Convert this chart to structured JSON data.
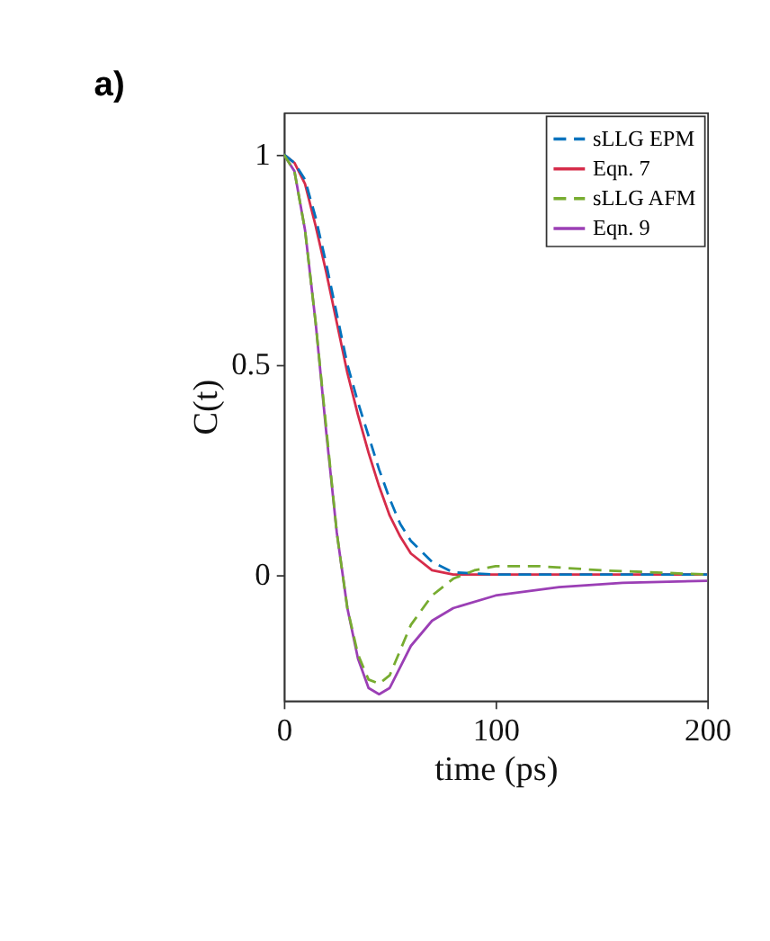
{
  "chart_data": {
    "type": "line",
    "title": "a)",
    "xlabel": "time (ps)",
    "ylabel": "C(t)",
    "xlim": [
      0,
      200
    ],
    "ylim": [
      -0.3,
      1.1
    ],
    "xticks": [
      0,
      100,
      200
    ],
    "yticks": [
      {
        "value": 0,
        "label": "0"
      },
      {
        "value": 0.5,
        "label": "0.5"
      },
      {
        "value": 1,
        "label": "1"
      }
    ],
    "grid": false,
    "legend": "top right",
    "series": [
      {
        "name": "sLLG EPM",
        "color": "#0072bd",
        "line_style": "dashed",
        "x": [
          0,
          5,
          10,
          15,
          20,
          25,
          30,
          35,
          40,
          45,
          50,
          55,
          60,
          70,
          80,
          100,
          150,
          200
        ],
        "values": [
          1,
          0.98,
          0.94,
          0.85,
          0.74,
          0.62,
          0.5,
          0.41,
          0.33,
          0.25,
          0.18,
          0.12,
          0.08,
          0.03,
          0.005,
          0,
          0,
          0
        ]
      },
      {
        "name": "Eqn. 7",
        "color": "#d62c4a",
        "line_style": "solid",
        "x": [
          0,
          5,
          10,
          15,
          20,
          25,
          30,
          35,
          40,
          45,
          50,
          55,
          60,
          70,
          80,
          100,
          150,
          200
        ],
        "values": [
          1,
          0.98,
          0.93,
          0.83,
          0.72,
          0.6,
          0.48,
          0.38,
          0.29,
          0.21,
          0.14,
          0.09,
          0.05,
          0.01,
          0,
          0,
          0,
          0
        ]
      },
      {
        "name": "sLLG AFM",
        "color": "#77ac30",
        "line_style": "dashed",
        "x": [
          0,
          5,
          10,
          15,
          20,
          25,
          30,
          35,
          40,
          45,
          50,
          55,
          60,
          70,
          80,
          90,
          100,
          120,
          150,
          200
        ],
        "values": [
          1,
          0.96,
          0.82,
          0.6,
          0.35,
          0.1,
          -0.08,
          -0.19,
          -0.25,
          -0.26,
          -0.24,
          -0.18,
          -0.12,
          -0.05,
          -0.01,
          0.01,
          0.02,
          0.02,
          0.01,
          0
        ]
      },
      {
        "name": "Eqn. 9",
        "color": "#9b3fb5",
        "line_style": "solid",
        "x": [
          0,
          5,
          10,
          15,
          20,
          25,
          30,
          35,
          40,
          45,
          50,
          55,
          60,
          70,
          80,
          100,
          130,
          160,
          200
        ],
        "values": [
          1,
          0.96,
          0.82,
          0.6,
          0.34,
          0.1,
          -0.08,
          -0.2,
          -0.27,
          -0.285,
          -0.27,
          -0.22,
          -0.17,
          -0.11,
          -0.08,
          -0.05,
          -0.03,
          -0.02,
          -0.015
        ]
      }
    ]
  }
}
